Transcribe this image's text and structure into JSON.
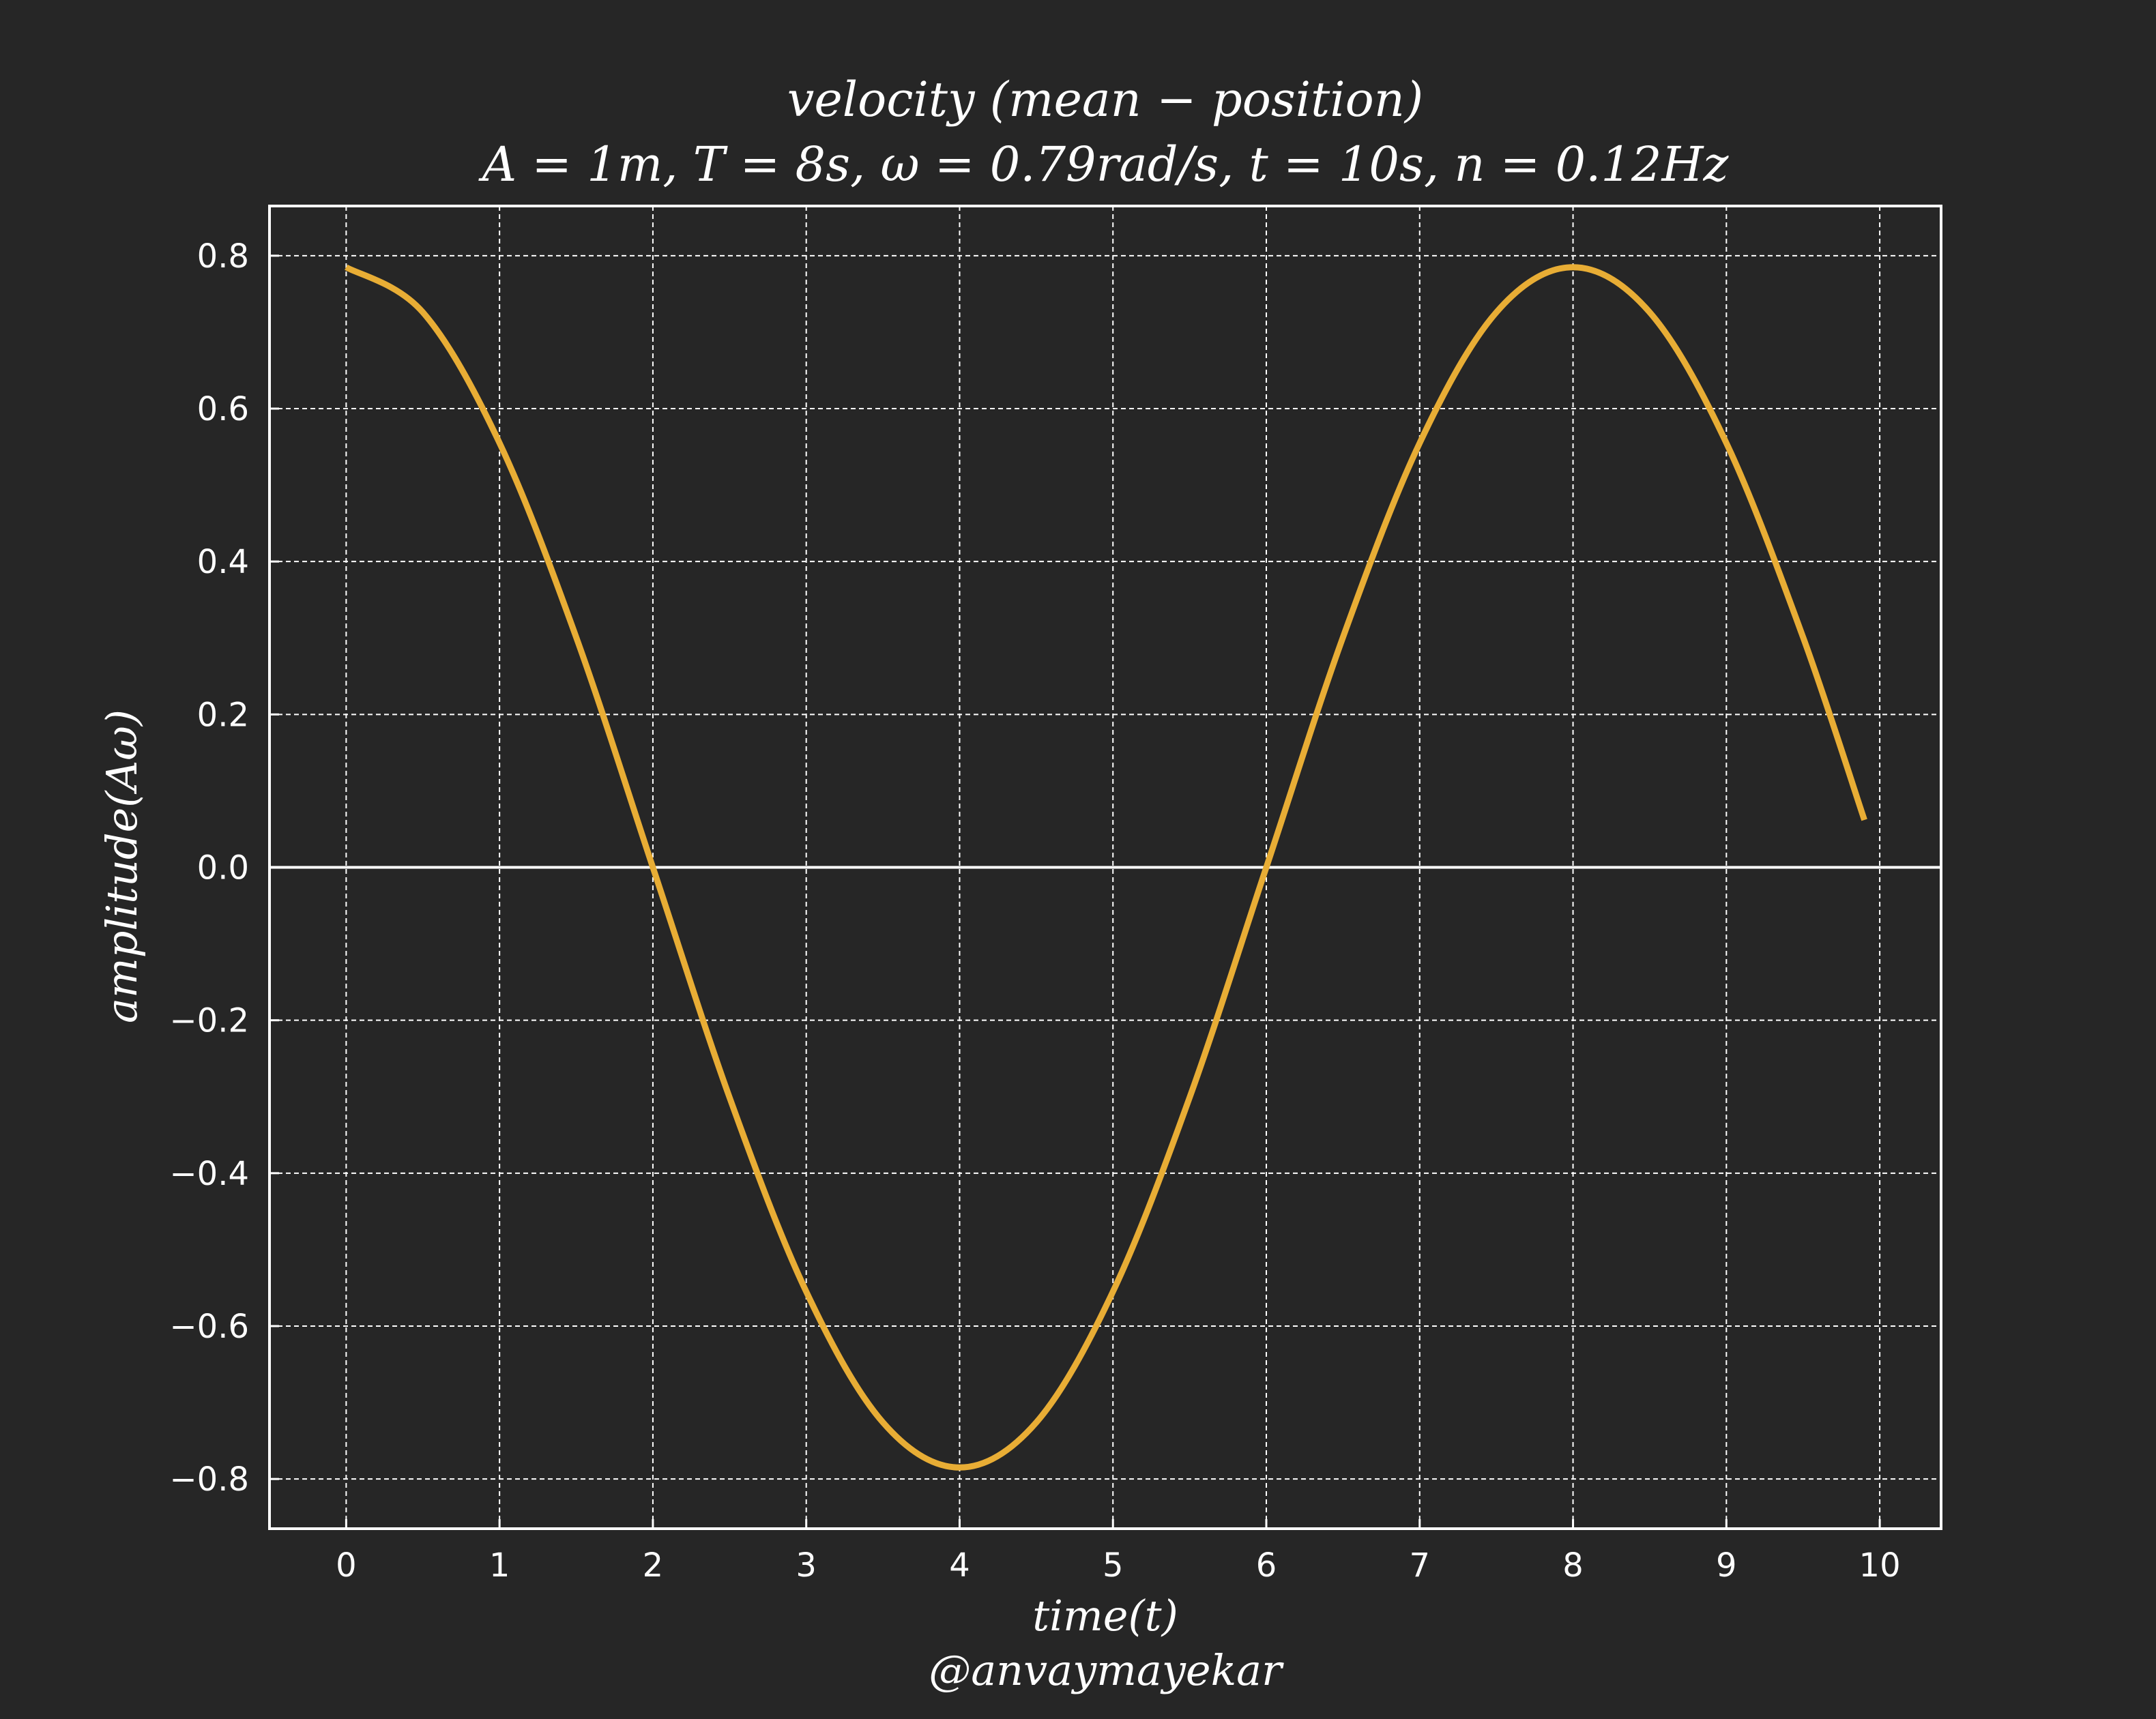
{
  "colors": {
    "background": "#262626",
    "axes": "#ffffff",
    "grid": "#ffffff",
    "series": "#e8ad35"
  },
  "chart_data": {
    "type": "line",
    "title": "velocity (mean − position)",
    "subtitle": "A = 1m, T = 8s, ω = 0.79rad/s, t = 10s, n = 0.12Hz",
    "xlabel": "time(t)",
    "ylabel": "amplitude(Aω)",
    "credit": "@anvaymayekar",
    "xlim": [
      -0.5,
      10.4
    ],
    "ylim": [
      -0.865,
      0.865
    ],
    "x_ticks": [
      0,
      1,
      2,
      3,
      4,
      5,
      6,
      7,
      8,
      9,
      10
    ],
    "x_tick_labels": [
      "0",
      "1",
      "2",
      "3",
      "4",
      "5",
      "6",
      "7",
      "8",
      "9",
      "10"
    ],
    "y_ticks": [
      0.8,
      0.6,
      0.4,
      0.2,
      0.0,
      -0.2,
      -0.4,
      -0.6,
      -0.8
    ],
    "y_tick_labels": [
      "0.8",
      "0.6",
      "0.4",
      "0.2",
      "0.0",
      "−0.2",
      "−0.4",
      "−0.6",
      "−0.8"
    ],
    "grid": true,
    "grid_style": "dashed",
    "zero_line": true,
    "series": [
      {
        "color": "#e8ad35",
        "x": [
          0,
          0.5,
          1,
          1.5,
          2,
          2.5,
          3,
          3.5,
          4,
          4.5,
          5,
          5.5,
          6,
          6.5,
          7,
          7.5,
          8,
          8.5,
          9,
          9.5,
          9.9
        ],
        "y": [
          0.785,
          0.726,
          0.555,
          0.301,
          0.0,
          -0.301,
          -0.555,
          -0.726,
          -0.785,
          -0.726,
          -0.555,
          -0.301,
          0.0,
          0.301,
          0.555,
          0.726,
          0.785,
          0.726,
          0.555,
          0.301,
          0.062
        ]
      }
    ]
  }
}
